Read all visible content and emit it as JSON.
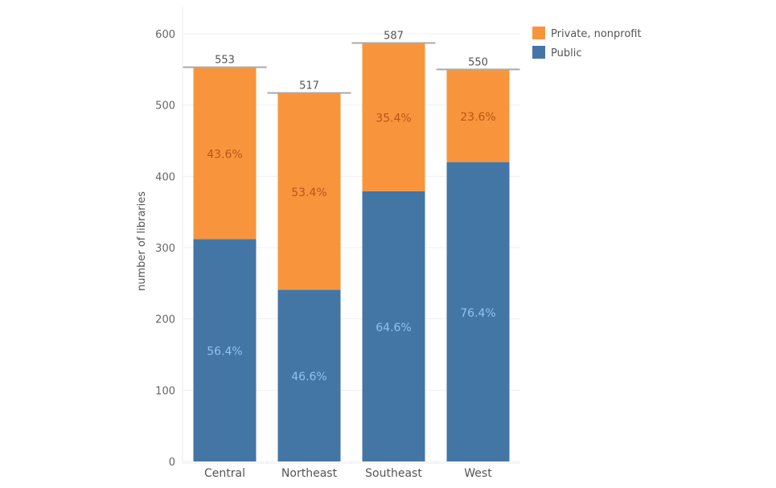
{
  "chart_data": {
    "type": "bar",
    "stacked": true,
    "title": "",
    "xlabel": "",
    "ylabel": "number of libraries",
    "ylim": [
      0,
      600
    ],
    "yticks": [
      0,
      100,
      200,
      300,
      400,
      500,
      600
    ],
    "grid": true,
    "legend_position": "top-right",
    "categories": [
      "Central",
      "Northeast",
      "Southeast",
      "West"
    ],
    "totals": [
      553,
      517,
      587,
      550
    ],
    "series": [
      {
        "name": "Public",
        "color": "#4476a5",
        "label_color": "#8ec1f0",
        "values": [
          312,
          241,
          379,
          420
        ],
        "labels": [
          "56.4%",
          "46.6%",
          "64.6%",
          "76.4%"
        ]
      },
      {
        "name": "Private, nonprofit",
        "color": "#f8953c",
        "label_color": "#b9561a",
        "values": [
          241,
          276,
          208,
          130
        ],
        "labels": [
          "43.6%",
          "53.4%",
          "35.4%",
          "23.6%"
        ]
      }
    ],
    "legend": [
      "Private, nonprofit",
      "Public"
    ]
  }
}
